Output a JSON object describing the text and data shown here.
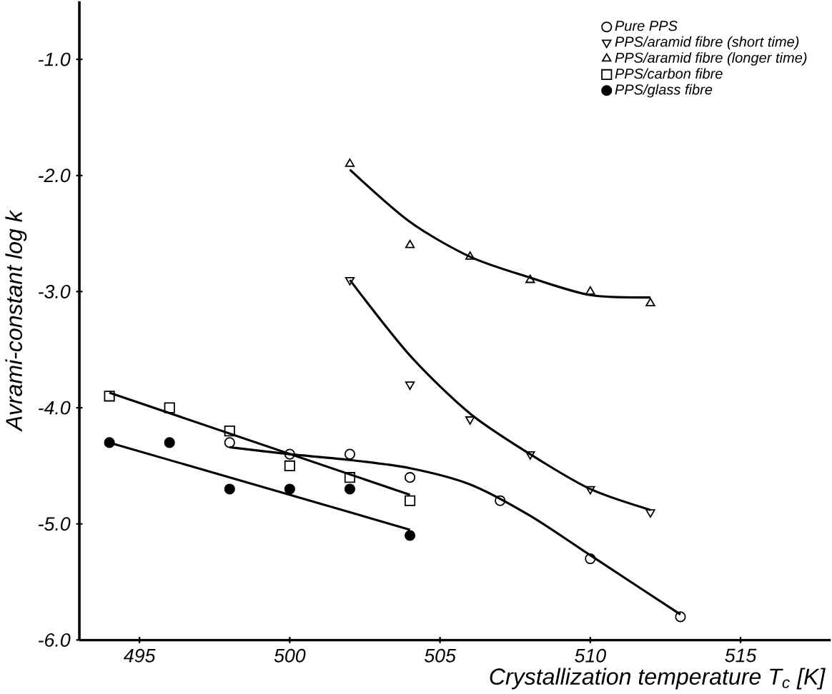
{
  "chart_data": {
    "type": "scatter",
    "xlabel": "Crystallization temperature T$_{c}$ [K]",
    "ylabel": "Avrami-constant log k",
    "series": [
      {
        "name": "Pure PPS",
        "color": "#000000",
        "marker": "circle",
        "x": [
          498,
          500,
          502,
          504,
          507,
          510,
          513
        ],
        "values": [
          -4.3,
          -4.4,
          -4.4,
          -4.6,
          -4.8,
          -5.3,
          -5.8
        ]
      },
      {
        "name": "PPS/aramid fibre (short time)",
        "color": "#000000",
        "marker": "triangle down",
        "x": [
          502,
          504,
          506,
          508,
          510,
          512
        ],
        "values": [
          -2.9,
          -3.8,
          -4.1,
          -4.4,
          -4.7,
          -4.9
        ]
      },
      {
        "name": "PPS/aramid fibre (longer time)",
        "color": "#000000",
        "marker": "triangle",
        "x": [
          502,
          504,
          506,
          508,
          510,
          512
        ],
        "values": [
          -1.9,
          -2.6,
          -2.7,
          -2.9,
          -3.0,
          -3.1
        ]
      },
      {
        "name": "PPS/carbon fibre",
        "color": "#000000",
        "marker": "square",
        "x": [
          494,
          496,
          498,
          500,
          502,
          504
        ],
        "values": [
          -3.9,
          -4.0,
          -4.2,
          -4.5,
          -4.6,
          -4.8
        ]
      },
      {
        "name": "PPS/glass fibre",
        "color": "#000000",
        "marker": "filled circle",
        "x": [
          494,
          496,
          498,
          500,
          502,
          504
        ],
        "values": [
          -4.3,
          -4.3,
          -4.7,
          -4.7,
          -4.7,
          -5.1
        ]
      },
      {
        "type": "line",
        "color": "#000000",
        "x": [
          498,
          500,
          502,
          504,
          506,
          508,
          510,
          513
        ],
        "values": [
          -4.34,
          -4.4,
          -4.45,
          -4.52,
          -4.66,
          -4.93,
          -5.27,
          -5.78
        ]
      },
      {
        "type": "line",
        "color": "#000000",
        "x": [
          502,
          504,
          506,
          508,
          510,
          512
        ],
        "values": [
          -2.9,
          -3.55,
          -4.05,
          -4.4,
          -4.7,
          -4.88
        ]
      },
      {
        "type": "line",
        "color": "#000000",
        "x": [
          502,
          504,
          506,
          508,
          510,
          512
        ],
        "values": [
          -1.95,
          -2.4,
          -2.7,
          -2.88,
          -3.03,
          -3.05
        ]
      },
      {
        "type": "line",
        "color": "#000000",
        "x": [
          494,
          504
        ],
        "values": [
          -3.87,
          -4.75
        ]
      },
      {
        "type": "line",
        "color": "#000000",
        "x": [
          494,
          504
        ],
        "values": [
          -4.3,
          -5.05
        ]
      }
    ],
    "xlim": [
      493,
      518
    ],
    "ylim": [
      -6.0,
      -0.5
    ],
    "xticks": [
      495,
      500,
      505,
      510,
      515
    ],
    "yticks": [
      {
        "value": -6.0,
        "label": "-6.0"
      },
      {
        "value": -5.0,
        "label": "-5.0"
      },
      {
        "value": -4.0,
        "label": "-4.0"
      },
      {
        "value": -3.0,
        "label": "-3.0"
      },
      {
        "value": -2.0,
        "label": "-2.0"
      },
      {
        "value": -1.0,
        "label": "-1.0"
      }
    ],
    "legend": "top right",
    "line_style": "solid"
  }
}
